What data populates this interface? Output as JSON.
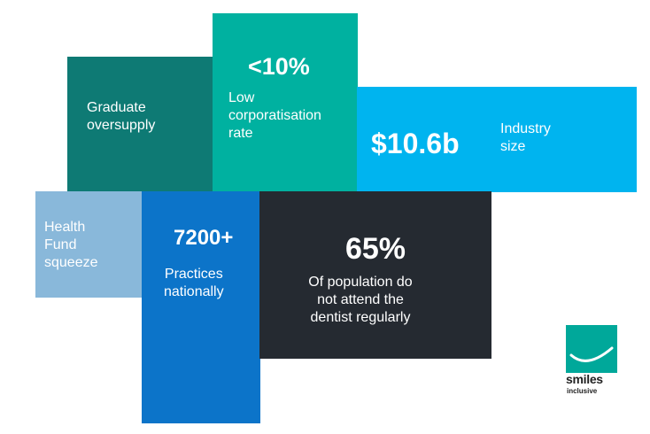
{
  "tiles": {
    "graduate": {
      "line1": "Graduate",
      "line2": "oversupply"
    },
    "corporatisation": {
      "stat": "<10%",
      "line1": "Low",
      "line2": "corporatisation",
      "line3": "rate"
    },
    "industry": {
      "stat": "$10.6b",
      "line1": "Industry",
      "line2": "size"
    },
    "health_fund": {
      "line1": "Health",
      "line2": "Fund",
      "line3": "squeeze"
    },
    "practices": {
      "stat": "7200+",
      "line1": "Practices",
      "line2": "nationally"
    },
    "population": {
      "stat": "65%",
      "line1": "Of population do",
      "line2": "not attend the",
      "line3": "dentist regularly"
    }
  },
  "logo": {
    "name": "smiles",
    "sub": "inclusive"
  },
  "colors": {
    "graduate": "#0e7a74",
    "corporatisation": "#00b1a0",
    "industry": "#00b4ef",
    "health_fund": "#89b8da",
    "practices": "#0c74c9",
    "population": "#252a31",
    "logo": "#00a89a"
  }
}
